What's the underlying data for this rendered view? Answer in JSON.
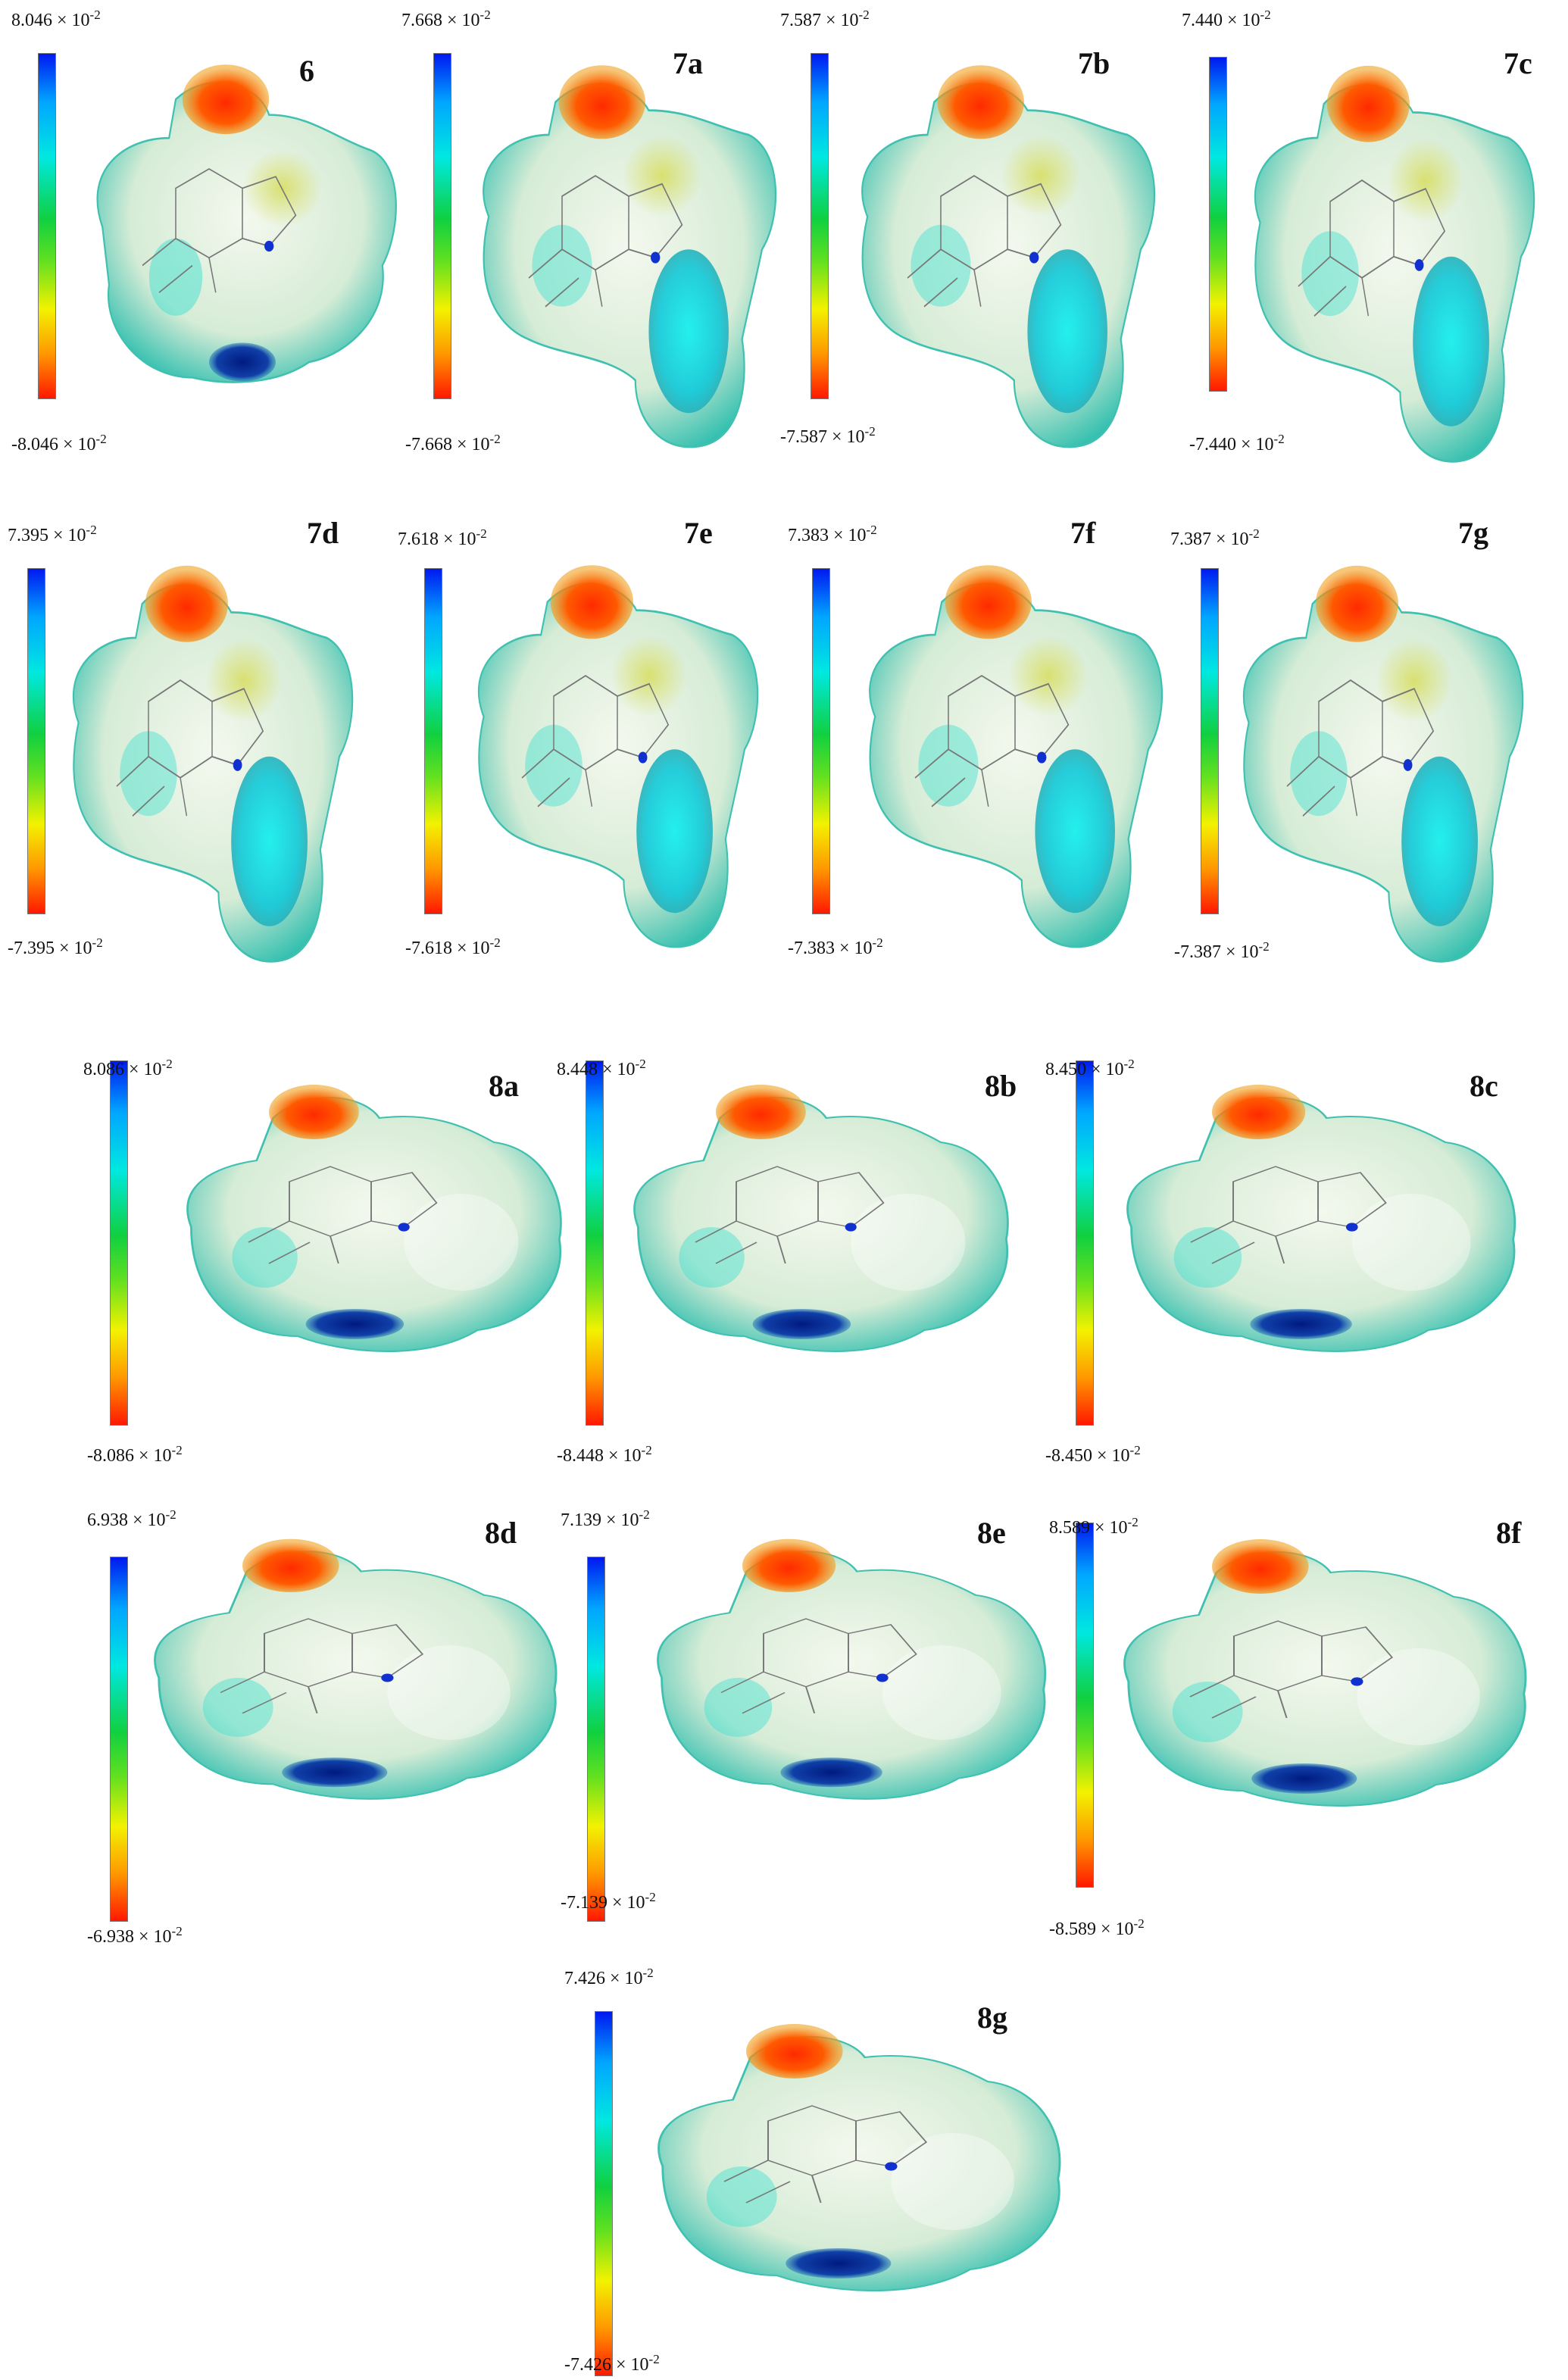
{
  "panels": [
    {
      "label": "6",
      "max": "8.046 × 10",
      "min": "-8.046 × 10",
      "exp": "-2",
      "variant": "head"
    },
    {
      "label": "7a",
      "max": "7.668 × 10",
      "min": "-7.668 × 10",
      "exp": "-2",
      "variant": "tail"
    },
    {
      "label": "7b",
      "max": "7.587 × 10",
      "min": "-7.587 × 10",
      "exp": "-2",
      "variant": "tail"
    },
    {
      "label": "7c",
      "max": "7.440 × 10",
      "min": "-7.440 × 10",
      "exp": "-2",
      "variant": "tail"
    },
    {
      "label": "7d",
      "max": "7.395 × 10",
      "min": "-7.395 × 10",
      "exp": "-2",
      "variant": "tail"
    },
    {
      "label": "7e",
      "max": "7.618 × 10",
      "min": "-7.618 × 10",
      "exp": "-2",
      "variant": "tail"
    },
    {
      "label": "7f",
      "max": "7.383 × 10",
      "min": "-7.383 × 10",
      "exp": "-2",
      "variant": "tail"
    },
    {
      "label": "7g",
      "max": "7.387 × 10",
      "min": "-7.387 × 10",
      "exp": "-2",
      "variant": "tail"
    },
    {
      "label": "8a",
      "max": "8.086 × 10",
      "min": "-8.086 × 10",
      "exp": "-2",
      "variant": "wide"
    },
    {
      "label": "8b",
      "max": "8.448 × 10",
      "min": "-8.448 × 10",
      "exp": "-2",
      "variant": "wide"
    },
    {
      "label": "8c",
      "max": "8.450 × 10",
      "min": "-8.450 × 10",
      "exp": "-2",
      "variant": "wide"
    },
    {
      "label": "8d",
      "max": "6.938 × 10",
      "min": "-6.938 × 10",
      "exp": "-2",
      "variant": "wide"
    },
    {
      "label": "8e",
      "max": "7.139 × 10",
      "min": "-7.139 × 10",
      "exp": "-2",
      "variant": "wide"
    },
    {
      "label": "8f",
      "max": "8.589 × 10",
      "min": "-8.589 × 10",
      "exp": "-2",
      "variant": "wide"
    },
    {
      "label": "8g",
      "max": "7.426 × 10",
      "min": "-7.426 × 10",
      "exp": "-2",
      "variant": "wide"
    }
  ],
  "colors": {
    "negative": "#ff1800",
    "positive": "#0018f0",
    "neutral": "#d8ecd8",
    "surface_edge": "#38c8b8"
  }
}
